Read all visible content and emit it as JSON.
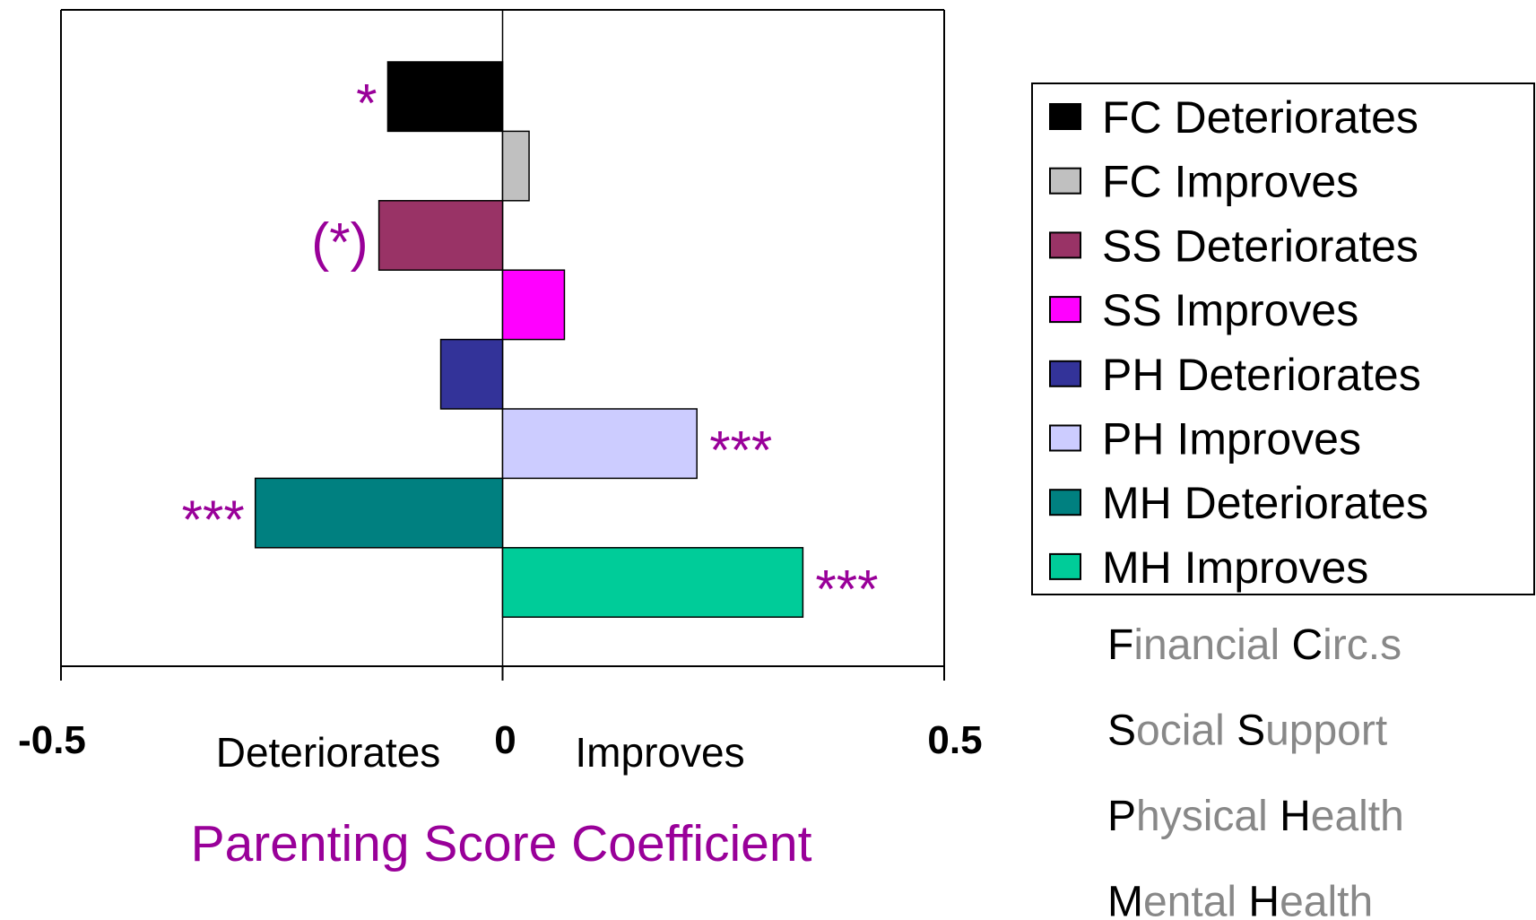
{
  "chart_data": {
    "type": "hbar",
    "xlabel": "Parenting Score  Coefficient",
    "side_labels": [
      "Deteriorates",
      "Improves"
    ],
    "xlim": [
      -0.5,
      0.5
    ],
    "xticks": [
      -0.5,
      0,
      0.5
    ],
    "series": [
      {
        "name": "FC Deteriorates",
        "color": "#000000",
        "values": [
          -0.13
        ],
        "annotation": "*"
      },
      {
        "name": "FC Improves",
        "color": "#c0c0c0",
        "values": [
          0.03
        ]
      },
      {
        "name": "SS Deteriorates",
        "color": "#993366",
        "values": [
          -0.14
        ],
        "annotation": "(*)"
      },
      {
        "name": "SS Improves",
        "color": "#ff00ff",
        "values": [
          0.07
        ]
      },
      {
        "name": "PH Deteriorates",
        "color": "#333399",
        "values": [
          -0.07
        ]
      },
      {
        "name": "PH Improves",
        "color": "#ccccff",
        "values": [
          0.22
        ],
        "annotation": "***"
      },
      {
        "name": "MH Deteriorates",
        "color": "#008080",
        "values": [
          -0.28
        ],
        "annotation": "***"
      },
      {
        "name": "MH Improves",
        "color": "#00cc99",
        "values": [
          0.34
        ],
        "annotation": "***"
      }
    ],
    "glossary": [
      [
        "F",
        "inancial ",
        "C",
        "irc.s"
      ],
      [
        "S",
        "ocial ",
        "S",
        "upport"
      ],
      [
        "P",
        "hysical ",
        "H",
        "ealth"
      ],
      [
        "M",
        "ental ",
        "H",
        "ealth"
      ]
    ]
  }
}
